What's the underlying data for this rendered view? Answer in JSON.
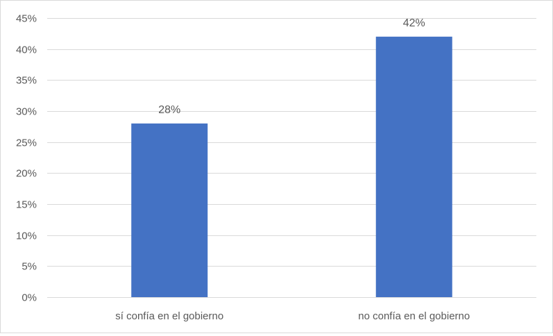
{
  "chart_data": {
    "type": "bar",
    "categories": [
      "sí confía en el gobierno",
      "no confía en el gobierno"
    ],
    "values": [
      28,
      42
    ],
    "data_labels": [
      "28%",
      "42%"
    ],
    "ylim": [
      0,
      45
    ],
    "y_ticks": [
      0,
      5,
      10,
      15,
      20,
      25,
      30,
      35,
      40,
      45
    ],
    "y_tick_labels": [
      "0%",
      "5%",
      "10%",
      "15%",
      "20%",
      "25%",
      "30%",
      "35%",
      "40%",
      "45%"
    ],
    "title": "",
    "xlabel": "",
    "ylabel": "",
    "grid": true,
    "legend": "none",
    "colors": {
      "bar": "#4472c4",
      "gridline": "#d9d9d9",
      "text": "#595959",
      "border": "#d9d9d9"
    }
  }
}
